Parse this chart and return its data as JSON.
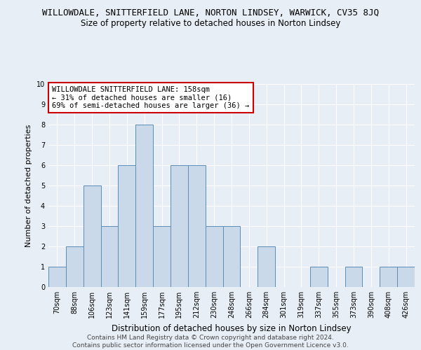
{
  "title": "WILLOWDALE, SNITTERFIELD LANE, NORTON LINDSEY, WARWICK, CV35 8JQ",
  "subtitle": "Size of property relative to detached houses in Norton Lindsey",
  "xlabel": "Distribution of detached houses by size in Norton Lindsey",
  "ylabel": "Number of detached properties",
  "categories": [
    "70sqm",
    "88sqm",
    "106sqm",
    "123sqm",
    "141sqm",
    "159sqm",
    "177sqm",
    "195sqm",
    "212sqm",
    "230sqm",
    "248sqm",
    "266sqm",
    "284sqm",
    "301sqm",
    "319sqm",
    "337sqm",
    "355sqm",
    "373sqm",
    "390sqm",
    "408sqm",
    "426sqm"
  ],
  "values": [
    1,
    2,
    5,
    3,
    6,
    8,
    3,
    6,
    6,
    3,
    3,
    0,
    2,
    0,
    0,
    1,
    0,
    1,
    0,
    1,
    1
  ],
  "bar_color": "#c9d9ea",
  "bar_edgecolor": "#5b8db8",
  "ylim": [
    0,
    10
  ],
  "yticks": [
    0,
    1,
    2,
    3,
    4,
    5,
    6,
    7,
    8,
    9,
    10
  ],
  "annotation_box_text": "WILLOWDALE SNITTERFIELD LANE: 158sqm\n← 31% of detached houses are smaller (16)\n69% of semi-detached houses are larger (36) →",
  "annotation_box_color": "#ffffff",
  "annotation_box_edgecolor": "#cc0000",
  "footer_line1": "Contains HM Land Registry data © Crown copyright and database right 2024.",
  "footer_line2": "Contains public sector information licensed under the Open Government Licence v3.0.",
  "background_color": "#e8eef6",
  "axes_facecolor": "#e8eef6",
  "grid_color": "#ffffff",
  "title_fontsize": 9,
  "subtitle_fontsize": 8.5,
  "xlabel_fontsize": 8.5,
  "ylabel_fontsize": 8,
  "tick_fontsize": 7,
  "annotation_fontsize": 7.5,
  "footer_fontsize": 6.5
}
